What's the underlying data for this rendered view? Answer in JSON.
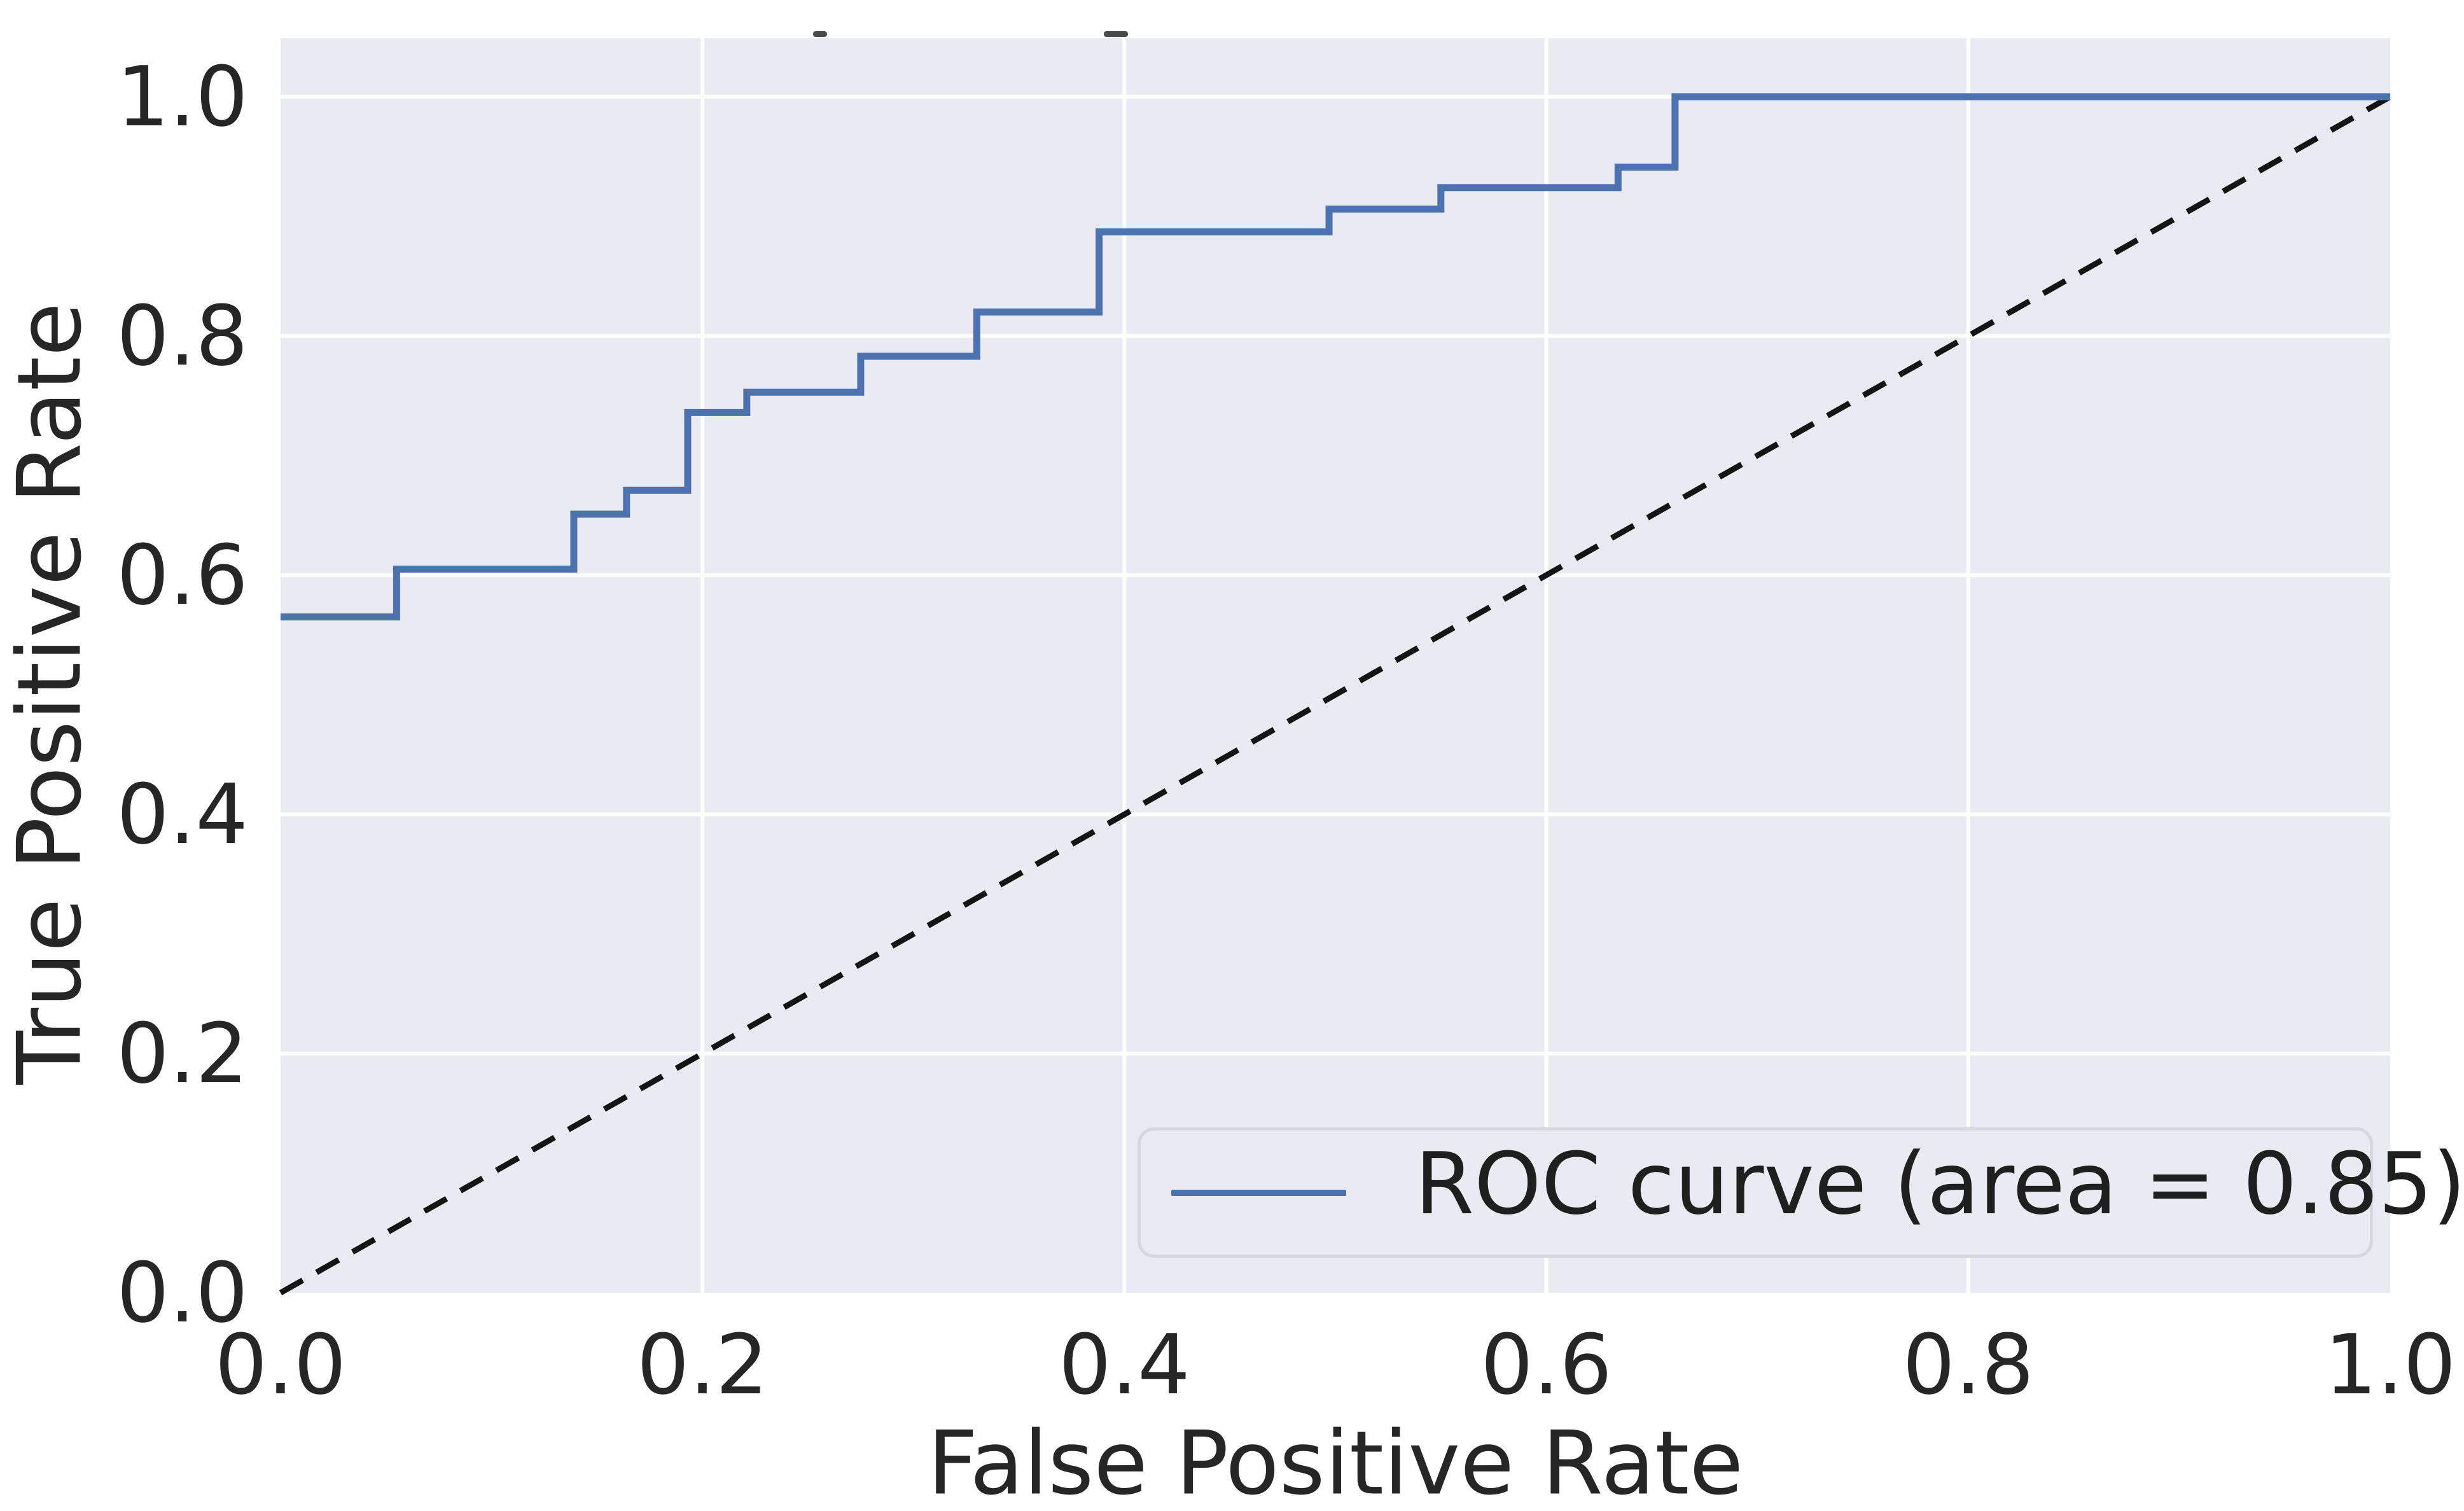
{
  "chart_data": {
    "type": "line",
    "subtype": "roc-step-curve",
    "title": "",
    "xlabel": "False Positive Rate",
    "ylabel": "True Positive Rate",
    "xlim": [
      0.0,
      1.0
    ],
    "ylim": [
      0.0,
      1.05
    ],
    "grid": true,
    "background_color": "#EAEAF2",
    "gridline_color": "#FFFFFF",
    "text_color": "#262626",
    "xticks": {
      "values": [
        0.0,
        0.2,
        0.4,
        0.6,
        0.8,
        1.0
      ],
      "labels": [
        "0.0",
        "0.2",
        "0.4",
        "0.6",
        "0.8",
        "1.0"
      ]
    },
    "yticks": {
      "values": [
        0.0,
        0.2,
        0.4,
        0.6,
        0.8,
        1.0
      ],
      "labels": [
        "0.0",
        "0.2",
        "0.4",
        "0.6",
        "0.8",
        "1.0"
      ]
    },
    "series": [
      {
        "name": "ROC curve (area = 0.85)",
        "type": "step",
        "color": "#4C72B0",
        "line_width": 11,
        "points": [
          [
            0.0,
            0.565
          ],
          [
            0.055,
            0.605
          ],
          [
            0.139,
            0.651
          ],
          [
            0.164,
            0.671
          ],
          [
            0.193,
            0.736
          ],
          [
            0.221,
            0.753
          ],
          [
            0.275,
            0.783
          ],
          [
            0.33,
            0.82
          ],
          [
            0.388,
            0.887
          ],
          [
            0.497,
            0.906
          ],
          [
            0.55,
            0.924
          ],
          [
            0.634,
            0.941
          ],
          [
            0.661,
            1.0
          ],
          [
            1.0,
            1.0
          ]
        ]
      },
      {
        "name": "chance-diagonal",
        "type": "dashed-line",
        "color": "#141414",
        "line_width": 9,
        "dash": [
          40,
          25
        ],
        "points": [
          [
            0.0,
            0.0
          ],
          [
            1.0,
            1.0
          ]
        ]
      }
    ],
    "legend": {
      "position": "lower right",
      "entries": [
        {
          "label": "ROC curve (area = 0.85)",
          "color": "#4C72B0"
        }
      ]
    },
    "auc": 0.85
  }
}
